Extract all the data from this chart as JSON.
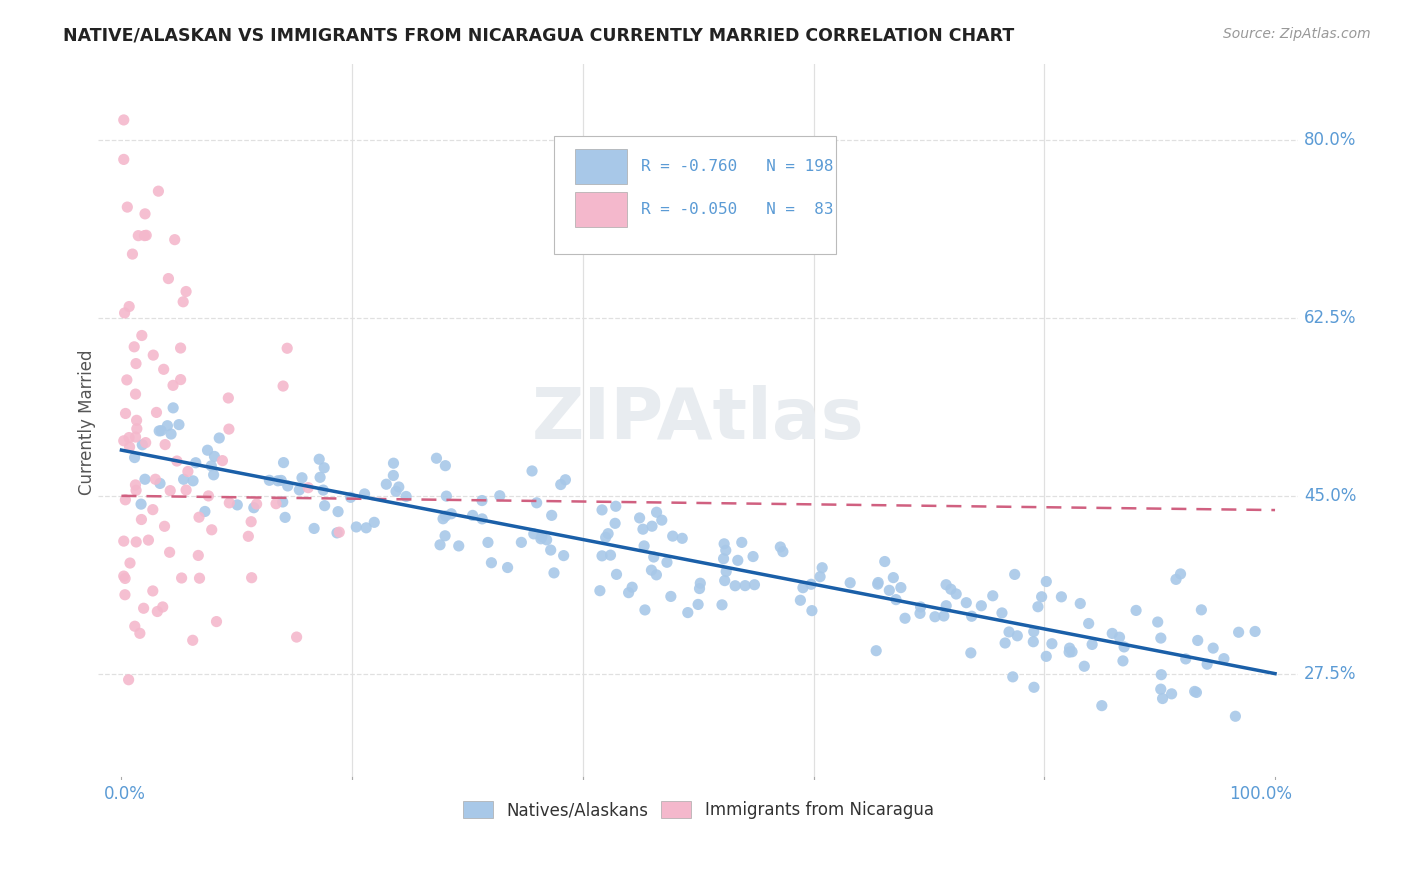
{
  "title": "NATIVE/ALASKAN VS IMMIGRANTS FROM NICARAGUA CURRENTLY MARRIED CORRELATION CHART",
  "source": "Source: ZipAtlas.com",
  "ylabel": "Currently Married",
  "ytick_values": [
    0.275,
    0.45,
    0.625,
    0.8
  ],
  "ytick_labels": [
    "27.5%",
    "45.0%",
    "62.5%",
    "80.0%"
  ],
  "legend": {
    "blue_R": "-0.760",
    "blue_N": "198",
    "pink_R": "-0.050",
    "pink_N": "83"
  },
  "blue_color": "#a8c8e8",
  "pink_color": "#f4b8cc",
  "trendline_blue": "#1a5fa8",
  "trendline_pink": "#d06080",
  "watermark": "ZIPAtlas",
  "watermark_color": "#e8ecf0",
  "grid_color": "#e0e0e0",
  "tick_color": "#5b9bd5",
  "ylabel_color": "#555555",
  "title_color": "#222222",
  "source_color": "#999999",
  "xlim": [
    -2,
    102
  ],
  "ylim": [
    0.17,
    0.875
  ]
}
